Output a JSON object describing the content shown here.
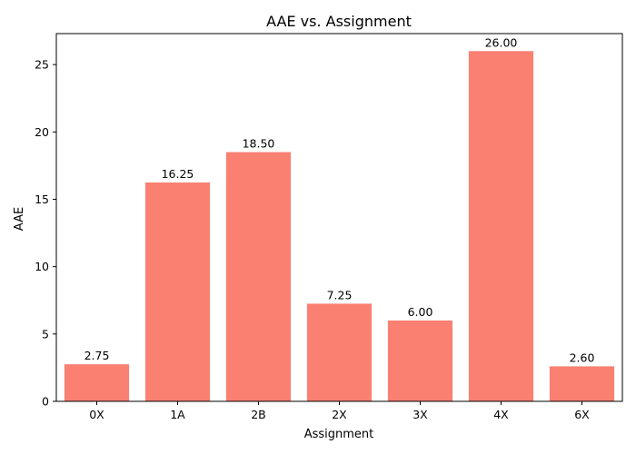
{
  "chart_data": {
    "type": "bar",
    "title": "AAE vs. Assignment",
    "xlabel": "Assignment",
    "ylabel": "AAE",
    "categories": [
      "0X",
      "1A",
      "2B",
      "2X",
      "3X",
      "4X",
      "6X"
    ],
    "values": [
      2.75,
      16.25,
      18.5,
      7.25,
      6.0,
      26.0,
      2.6
    ],
    "data_labels": [
      "2.75",
      "16.25",
      "18.50",
      "7.25",
      "6.00",
      "26.00",
      "2.60"
    ],
    "yticks": [
      0,
      5,
      10,
      15,
      20,
      25
    ],
    "ylim": [
      0,
      27.3
    ],
    "grid": false,
    "bar_color": "#fa8072"
  }
}
